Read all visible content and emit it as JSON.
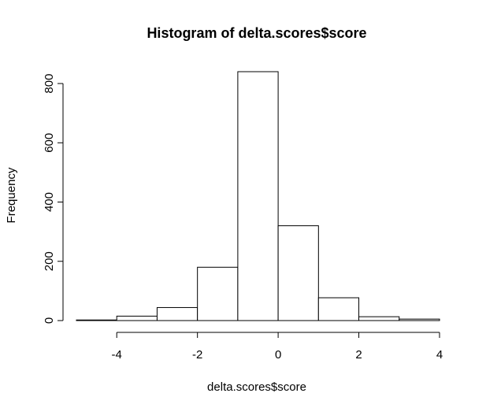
{
  "chart_data": {
    "type": "bar",
    "title": "Histogram of delta.scores$score",
    "xlabel": "delta.scores$score",
    "ylabel": "Frequency",
    "bin_edges": [
      -5,
      -4,
      -3,
      -2,
      -1,
      0,
      1,
      2,
      3,
      4
    ],
    "values": [
      2,
      15,
      44,
      180,
      840,
      320,
      77,
      13,
      5
    ],
    "xlim": [
      -5,
      4
    ],
    "ylim": [
      0,
      840
    ],
    "x_ticks": [
      -4,
      -2,
      0,
      2,
      4
    ],
    "x_tick_labels": [
      "-4",
      "-2",
      "0",
      "2",
      "4"
    ],
    "y_ticks": [
      0,
      200,
      400,
      600,
      800
    ],
    "y_tick_labels": [
      "0",
      "200",
      "400",
      "600",
      "800"
    ],
    "grid": false,
    "legend": "none",
    "bar_fill": "#ffffff",
    "bar_stroke": "#000000"
  }
}
